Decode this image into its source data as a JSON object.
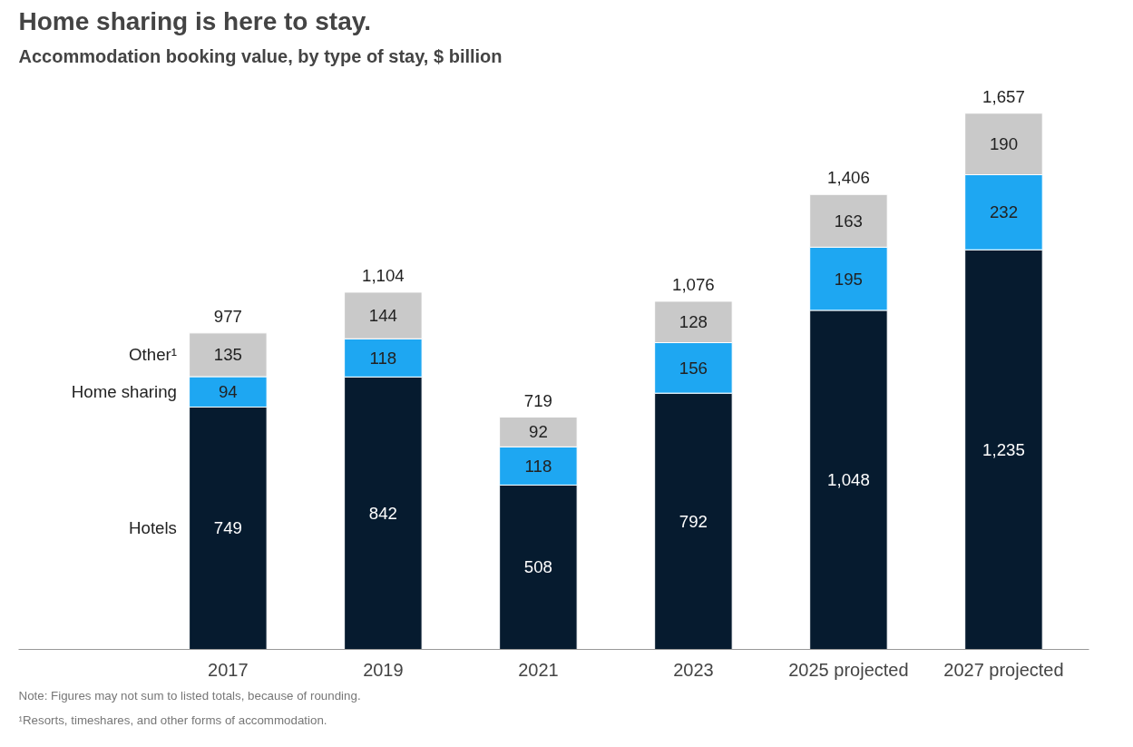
{
  "chart_data": {
    "type": "bar",
    "stacked": true,
    "title": "Home sharing is here to stay.",
    "subtitle": "Accommodation booking value, by type of stay, $ billion",
    "categories": [
      "2017",
      "2019",
      "2021",
      "2023",
      "2025 projected",
      "2027 projected"
    ],
    "series": [
      {
        "name": "Hotels",
        "color": "#061b2f",
        "values": [
          749,
          842,
          508,
          792,
          1048,
          1235
        ],
        "value_labels": [
          "749",
          "842",
          "508",
          "792",
          "1,048",
          "1,235"
        ]
      },
      {
        "name": "Home sharing",
        "color": "#1ea7f2",
        "values": [
          94,
          118,
          118,
          156,
          195,
          232
        ],
        "value_labels": [
          "94",
          "118",
          "118",
          "156",
          "195",
          "232"
        ]
      },
      {
        "name": "Other¹",
        "color": "#c9c9c9",
        "values": [
          135,
          144,
          92,
          128,
          163,
          190
        ],
        "value_labels": [
          "135",
          "144",
          "92",
          "128",
          "163",
          "190"
        ]
      }
    ],
    "totals": [
      "977",
      "1,104",
      "719",
      "1,076",
      "1,406",
      "1,657"
    ],
    "legend": false,
    "grid": false,
    "annotations": [
      "Note: Figures may not sum to listed totals, because of rounding.",
      "¹Resorts, timeshares, and other forms of accommodation."
    ]
  }
}
